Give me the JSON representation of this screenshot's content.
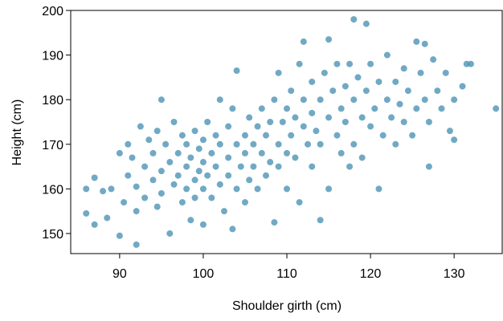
{
  "chart_data": {
    "type": "scatter",
    "x_label": "Shoulder girth (cm)",
    "y_label": "Height (cm)",
    "color": "#4e93b5",
    "xlim": [
      84.15,
      135.75
    ],
    "ylim": [
      145.5,
      200
    ],
    "xticks": [
      90,
      100,
      110,
      120,
      130
    ],
    "yticks": [
      150,
      160,
      170,
      180,
      190,
      200
    ],
    "x": [
      86,
      86,
      87,
      87,
      88,
      88.5,
      89,
      90,
      90,
      90.5,
      91,
      91,
      91.5,
      92,
      92,
      92,
      92.5,
      93,
      93,
      93.5,
      94,
      94,
      94.5,
      94.5,
      95,
      95,
      95,
      95.5,
      96,
      96,
      96.5,
      96.5,
      97,
      97,
      97.5,
      97.5,
      98,
      98,
      98,
      98.5,
      98.5,
      99,
      99,
      99,
      99.5,
      99.5,
      100,
      100,
      100,
      100,
      100.5,
      100.5,
      101,
      101,
      101.5,
      101.5,
      102,
      102,
      102,
      102.5,
      103,
      103,
      103,
      103.5,
      103.5,
      104,
      104,
      104,
      104.5,
      105,
      105,
      105,
      105.5,
      105.5,
      106,
      106,
      106.5,
      106.5,
      107,
      107,
      107.5,
      107.5,
      108,
      108,
      108.5,
      108.5,
      109,
      109,
      109,
      109.5,
      110,
      110,
      110,
      110.5,
      110.5,
      111,
      111,
      111.5,
      111.5,
      112,
      112,
      112,
      112.5,
      113,
      113,
      113,
      113.5,
      114,
      114,
      114,
      114.5,
      115,
      115,
      115,
      115.5,
      116,
      116,
      116.5,
      116.5,
      117,
      117,
      117.5,
      117.5,
      118,
      118,
      118,
      118.5,
      119,
      119,
      119.5,
      119.5,
      120,
      120,
      120.5,
      121,
      121,
      121.5,
      122,
      122,
      122.5,
      123,
      123,
      123.5,
      124,
      124,
      124.5,
      125,
      125.5,
      125.5,
      126,
      126.5,
      126.5,
      127,
      127,
      127.5,
      128,
      128.5,
      129,
      129.5,
      130,
      130,
      131,
      131.5,
      132,
      135
    ],
    "y": [
      160,
      154.5,
      152,
      162.5,
      159.5,
      153.5,
      160,
      149.5,
      168,
      157,
      163,
      170,
      167,
      147.5,
      155,
      160.5,
      174,
      165,
      158,
      171,
      162,
      168,
      156,
      173,
      180,
      164,
      159,
      170,
      150,
      166,
      161,
      175,
      168,
      163,
      157,
      172,
      165,
      170,
      160,
      167,
      153,
      173,
      162,
      158,
      169,
      164,
      171,
      166,
      160,
      152,
      175,
      163,
      168,
      158,
      172,
      165,
      180,
      170,
      161,
      155,
      167,
      174,
      163,
      151,
      178,
      186.5,
      170,
      160,
      165,
      172,
      168,
      157,
      176,
      162,
      170,
      165,
      174,
      160,
      178,
      168,
      163,
      172,
      175,
      166,
      152.5,
      180,
      170,
      165,
      186,
      175,
      178,
      168,
      160,
      182,
      172,
      176,
      167,
      188,
      157,
      193,
      174,
      180,
      170,
      177,
      184,
      165,
      173,
      153,
      180,
      170,
      186,
      193.5,
      160,
      176,
      182,
      172,
      188,
      178,
      168,
      183,
      175,
      165,
      188,
      198,
      180,
      170,
      185,
      176,
      167,
      197,
      182,
      174,
      188,
      178,
      160,
      184,
      172,
      180,
      190,
      176,
      184,
      170,
      179,
      187,
      175,
      182,
      172,
      193,
      178,
      186,
      192.5,
      180,
      165,
      175,
      189,
      182,
      178,
      186,
      173,
      180,
      171,
      183,
      188,
      188,
      178
    ]
  }
}
